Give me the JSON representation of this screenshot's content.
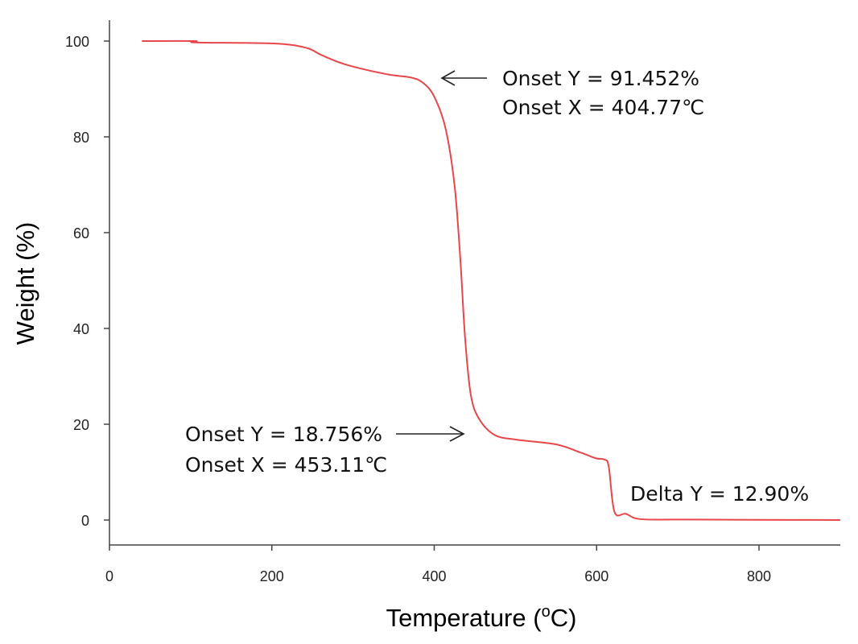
{
  "chart_data": {
    "type": "line",
    "title": "",
    "xlabel": "Temperature (",
    "xlabel_sup": "o",
    "xlabel_end": "C)",
    "ylabel": "Weight (%)",
    "xlim": [
      0,
      900
    ],
    "ylim": [
      -5,
      104
    ],
    "x_ticks": [
      "0",
      "200",
      "400",
      "600",
      "800"
    ],
    "x_tick_values": [
      0,
      200,
      400,
      600,
      800
    ],
    "y_ticks": [
      "0",
      "20",
      "40",
      "60",
      "80",
      "100"
    ],
    "y_tick_values": [
      0,
      20,
      40,
      60,
      80,
      100
    ],
    "grid": false,
    "line_color": "#e8474a",
    "series": [
      {
        "x": [
          40,
          105,
          106,
          202,
          242,
          262,
          291,
          341,
          371,
          386,
          400,
          414,
          425,
          432,
          438,
          445,
          455,
          474,
          500,
          550,
          580,
          599,
          610,
          615,
          622,
          636,
          653,
          700,
          800,
          900
        ],
        "y": [
          100,
          100,
          99.7,
          99.5,
          98.6,
          97.0,
          95.1,
          93.1,
          92.4,
          91.3,
          88.4,
          81.7,
          69.9,
          54.8,
          38,
          26.2,
          21.2,
          17.8,
          16.8,
          15.8,
          14.1,
          12.9,
          12.6,
          11.1,
          1.7,
          1.3,
          0.2,
          0.1,
          0.05,
          0
        ]
      }
    ],
    "annotations": [
      {
        "lines": [
          "Onset Y = 91.452%",
          "Onset X = 404.77℃"
        ],
        "arrow": "left"
      },
      {
        "lines": [
          "Onset Y = 18.756%",
          "Onset X = 453.11℃"
        ],
        "arrow": "right"
      },
      {
        "lines": [
          "Delta Y = 12.90%"
        ],
        "arrow": "none"
      }
    ]
  }
}
